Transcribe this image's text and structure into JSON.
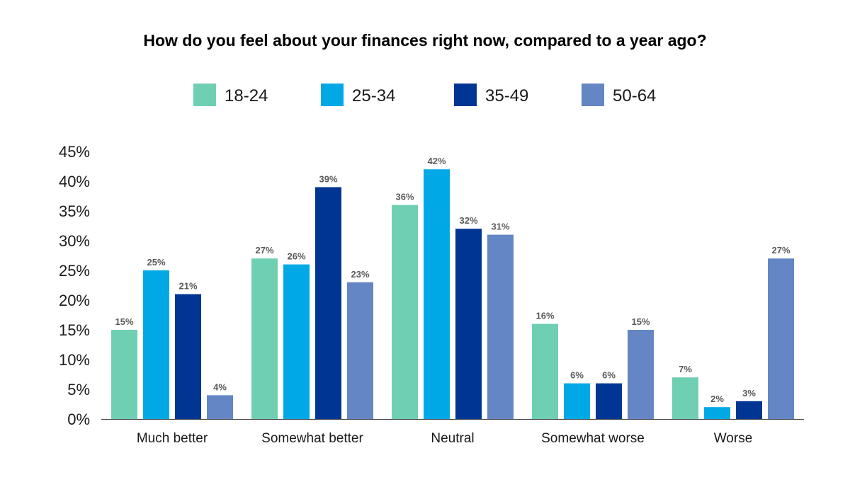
{
  "chart_data": {
    "type": "bar",
    "title": "How do you feel about your finances right now, compared to a year ago?",
    "categories": [
      "Much better",
      "Somewhat better",
      "Neutral",
      "Somewhat worse",
      "Worse"
    ],
    "series": [
      {
        "name": "18-24",
        "color": "#6FCFB2",
        "values": [
          15,
          27,
          36,
          16,
          7
        ]
      },
      {
        "name": "25-34",
        "color": "#00A9E6",
        "values": [
          25,
          26,
          42,
          6,
          2
        ]
      },
      {
        "name": "35-49",
        "color": "#003594",
        "values": [
          21,
          39,
          32,
          6,
          3
        ]
      },
      {
        "name": "50-64",
        "color": "#6586C5",
        "values": [
          4,
          23,
          31,
          15,
          27
        ]
      }
    ],
    "ylim": [
      0,
      45
    ],
    "yticks": [
      0,
      5,
      10,
      15,
      20,
      25,
      30,
      35,
      40,
      45
    ],
    "ytick_suffix": "%",
    "data_label_suffix": "%",
    "xlabel": "",
    "ylabel": "",
    "grid": false,
    "legend_position": "top"
  }
}
